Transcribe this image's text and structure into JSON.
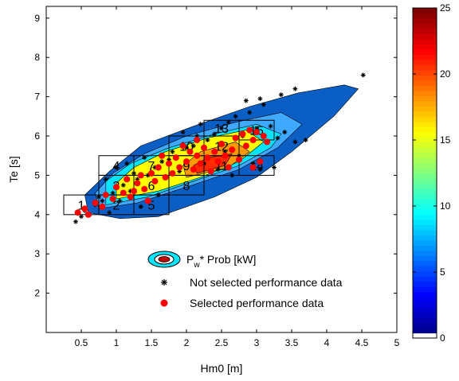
{
  "chart_data": {
    "type": "scatter",
    "xlabel": "Hm0 [m]",
    "ylabel": "Te [s]",
    "xlim": [
      0,
      5
    ],
    "ylim": [
      1,
      9.3
    ],
    "xticks": [
      "0.5",
      "1",
      "1.5",
      "2",
      "2.5",
      "3",
      "3.5",
      "4",
      "4.5",
      "5"
    ],
    "yticks": [
      "2",
      "3",
      "4",
      "5",
      "6",
      "7",
      "8",
      "9"
    ],
    "colorbar": {
      "min": 0,
      "max": 25,
      "ticks": [
        "0",
        "5",
        "10",
        "15",
        "20",
        "25"
      ],
      "colormap": "jet"
    },
    "contours": [
      {
        "level": "outer",
        "color": "#0b5fc4",
        "points": [
          [
            1.05,
            3.9
          ],
          [
            1.6,
            3.95
          ],
          [
            2.4,
            4.45
          ],
          [
            3.0,
            4.95
          ],
          [
            3.5,
            5.6
          ],
          [
            4.1,
            6.5
          ],
          [
            4.45,
            7.2
          ],
          [
            4.25,
            7.3
          ],
          [
            3.6,
            7.1
          ],
          [
            2.9,
            6.75
          ],
          [
            2.1,
            6.25
          ],
          [
            1.35,
            5.75
          ],
          [
            0.9,
            5.1
          ],
          [
            0.55,
            4.5
          ],
          [
            0.6,
            4.05
          ]
        ]
      },
      {
        "level": "mid",
        "color": "#3fa8ff",
        "points": [
          [
            0.75,
            4.15
          ],
          [
            1.3,
            4.3
          ],
          [
            2.0,
            4.7
          ],
          [
            2.75,
            5.15
          ],
          [
            3.3,
            5.7
          ],
          [
            3.65,
            6.3
          ],
          [
            3.35,
            6.6
          ],
          [
            2.7,
            6.35
          ],
          [
            2.0,
            6.0
          ],
          [
            1.4,
            5.55
          ],
          [
            0.95,
            5.05
          ],
          [
            0.7,
            4.55
          ]
        ]
      },
      {
        "level": "inner-cyan",
        "color": "#00e5ff",
        "points": [
          [
            0.85,
            4.25
          ],
          [
            1.45,
            4.45
          ],
          [
            2.1,
            4.85
          ],
          [
            2.75,
            5.25
          ],
          [
            3.2,
            5.7
          ],
          [
            3.35,
            6.05
          ],
          [
            3.0,
            6.3
          ],
          [
            2.4,
            6.05
          ],
          [
            1.75,
            5.7
          ],
          [
            1.2,
            5.3
          ],
          [
            0.85,
            4.85
          ]
        ]
      },
      {
        "level": "inner-yellow",
        "color": "#ffff00",
        "points": [
          [
            1.0,
            4.4
          ],
          [
            1.6,
            4.6
          ],
          [
            2.2,
            4.95
          ],
          [
            2.75,
            5.35
          ],
          [
            3.1,
            5.85
          ],
          [
            2.85,
            6.15
          ],
          [
            2.3,
            5.95
          ],
          [
            1.7,
            5.6
          ],
          [
            1.25,
            5.2
          ],
          [
            1.0,
            4.8
          ]
        ]
      },
      {
        "level": "inner-orange",
        "color": "#ff9900",
        "points": [
          [
            2.0,
            4.95
          ],
          [
            2.6,
            5.2
          ],
          [
            2.9,
            5.6
          ],
          [
            2.7,
            5.85
          ],
          [
            2.2,
            5.6
          ],
          [
            1.95,
            5.25
          ]
        ]
      },
      {
        "level": "peak",
        "color": "#ff2a00",
        "points": [
          [
            2.15,
            5.05
          ],
          [
            2.55,
            5.25
          ],
          [
            2.65,
            5.55
          ],
          [
            2.3,
            5.45
          ],
          [
            2.1,
            5.25
          ]
        ]
      }
    ],
    "bins": [
      {
        "label": "1",
        "x": [
          0.25,
          0.75
        ],
        "y": [
          4.0,
          4.5
        ]
      },
      {
        "label": "2",
        "x": [
          0.75,
          1.25
        ],
        "y": [
          4.0,
          4.5
        ]
      },
      {
        "label": "3",
        "x": [
          0.75,
          1.25
        ],
        "y": [
          4.5,
          5.0
        ]
      },
      {
        "label": "4",
        "x": [
          0.75,
          1.25
        ],
        "y": [
          5.0,
          5.5
        ]
      },
      {
        "label": "5",
        "x": [
          1.25,
          1.75
        ],
        "y": [
          4.0,
          4.5
        ]
      },
      {
        "label": "6",
        "x": [
          1.25,
          1.75
        ],
        "y": [
          4.5,
          5.0
        ]
      },
      {
        "label": "7",
        "x": [
          1.25,
          1.75
        ],
        "y": [
          5.0,
          5.5
        ]
      },
      {
        "label": "8",
        "x": [
          1.75,
          2.25
        ],
        "y": [
          4.5,
          5.0
        ]
      },
      {
        "label": "9",
        "x": [
          1.75,
          2.25
        ],
        "y": [
          5.0,
          5.5
        ]
      },
      {
        "label": "10",
        "x": [
          1.75,
          2.25
        ],
        "y": [
          5.5,
          6.0
        ]
      },
      {
        "label": "11",
        "x": [
          2.25,
          2.75
        ],
        "y": [
          5.0,
          5.5
        ]
      },
      {
        "label": "12",
        "x": [
          2.25,
          2.75
        ],
        "y": [
          5.5,
          6.0
        ]
      },
      {
        "label": "13",
        "x": [
          2.25,
          2.75
        ],
        "y": [
          6.0,
          6.4
        ]
      },
      {
        "label": "14",
        "x": [
          2.75,
          3.25
        ],
        "y": [
          5.0,
          5.5
        ]
      },
      {
        "label": "15",
        "x": [
          2.75,
          3.25
        ],
        "y": [
          5.9,
          6.4
        ]
      }
    ],
    "series": [
      {
        "name": "Not selected performance data",
        "marker": "star",
        "color": "#000000",
        "points": [
          [
            0.42,
            3.82
          ],
          [
            0.5,
            3.95
          ],
          [
            0.55,
            4.1
          ],
          [
            0.62,
            4.0
          ],
          [
            0.7,
            4.25
          ],
          [
            0.8,
            4.35
          ],
          [
            0.9,
            4.05
          ],
          [
            0.95,
            4.55
          ],
          [
            1.05,
            4.35
          ],
          [
            1.1,
            4.75
          ],
          [
            1.2,
            4.6
          ],
          [
            1.25,
            5.05
          ],
          [
            1.3,
            4.9
          ],
          [
            1.35,
            4.2
          ],
          [
            1.45,
            5.0
          ],
          [
            1.55,
            5.2
          ],
          [
            1.6,
            4.5
          ],
          [
            1.65,
            5.35
          ],
          [
            1.75,
            5.4
          ],
          [
            1.8,
            5.6
          ],
          [
            1.9,
            5.1
          ],
          [
            2.0,
            5.7
          ],
          [
            2.1,
            5.75
          ],
          [
            2.15,
            6.0
          ],
          [
            2.25,
            5.3
          ],
          [
            2.3,
            5.9
          ],
          [
            2.4,
            6.05
          ],
          [
            2.5,
            6.2
          ],
          [
            2.55,
            5.6
          ],
          [
            2.6,
            6.35
          ],
          [
            2.7,
            6.5
          ],
          [
            2.75,
            5.5
          ],
          [
            2.8,
            6.0
          ],
          [
            2.9,
            6.6
          ],
          [
            2.95,
            5.3
          ],
          [
            3.0,
            6.2
          ],
          [
            3.05,
            5.15
          ],
          [
            3.1,
            6.8
          ],
          [
            3.2,
            6.25
          ],
          [
            3.3,
            5.95
          ],
          [
            3.4,
            6.1
          ],
          [
            3.55,
            5.85
          ],
          [
            3.7,
            5.9
          ],
          [
            2.85,
            6.9
          ],
          [
            3.05,
            6.95
          ],
          [
            3.35,
            7.05
          ],
          [
            3.55,
            7.2
          ],
          [
            3.25,
            5.2
          ],
          [
            2.65,
            5.0
          ],
          [
            2.45,
            5.15
          ],
          [
            4.52,
            7.55
          ],
          [
            1.0,
            5.2
          ],
          [
            1.15,
            5.3
          ],
          [
            1.4,
            5.45
          ],
          [
            0.85,
            4.9
          ],
          [
            0.75,
            4.45
          ],
          [
            1.95,
            6.1
          ],
          [
            2.2,
            6.3
          ]
        ]
      },
      {
        "name": "Selected performance data",
        "marker": "dot",
        "color": "#ff0000",
        "points": [
          [
            0.45,
            4.05
          ],
          [
            0.55,
            4.15
          ],
          [
            0.6,
            4.0
          ],
          [
            0.7,
            4.3
          ],
          [
            0.8,
            4.2
          ],
          [
            0.85,
            4.5
          ],
          [
            0.95,
            4.4
          ],
          [
            1.0,
            4.7
          ],
          [
            1.1,
            4.55
          ],
          [
            1.15,
            4.9
          ],
          [
            1.2,
            4.45
          ],
          [
            1.3,
            4.8
          ],
          [
            1.35,
            5.0
          ],
          [
            1.4,
            4.65
          ],
          [
            1.5,
            5.05
          ],
          [
            1.55,
            4.85
          ],
          [
            1.6,
            5.2
          ],
          [
            1.7,
            4.95
          ],
          [
            1.75,
            5.3
          ],
          [
            1.8,
            5.05
          ],
          [
            1.85,
            5.45
          ],
          [
            1.9,
            5.2
          ],
          [
            2.0,
            5.35
          ],
          [
            2.05,
            5.6
          ],
          [
            2.1,
            5.15
          ],
          [
            2.15,
            5.5
          ],
          [
            2.2,
            5.3
          ],
          [
            2.25,
            5.7
          ],
          [
            2.3,
            5.45
          ],
          [
            2.35,
            5.1
          ],
          [
            2.4,
            5.6
          ],
          [
            2.45,
            5.35
          ],
          [
            2.5,
            5.8
          ],
          [
            2.55,
            5.5
          ],
          [
            2.6,
            5.2
          ],
          [
            2.65,
            5.65
          ],
          [
            2.7,
            5.95
          ],
          [
            2.75,
            5.4
          ],
          [
            2.8,
            6.05
          ],
          [
            2.85,
            5.75
          ],
          [
            2.9,
            6.15
          ],
          [
            2.95,
            5.9
          ],
          [
            3.0,
            6.1
          ],
          [
            3.1,
            6.0
          ],
          [
            3.15,
            5.85
          ],
          [
            2.95,
            5.2
          ],
          [
            3.05,
            5.35
          ],
          [
            1.45,
            4.35
          ],
          [
            1.25,
            4.6
          ],
          [
            1.65,
            5.5
          ],
          [
            1.95,
            5.75
          ],
          [
            2.15,
            5.9
          ]
        ]
      }
    ],
    "legend": {
      "position": "lower-center",
      "entries": [
        {
          "key": "contour",
          "label_main": "P",
          "label_sub": "w",
          "label_rest": "* Prob [kW]"
        },
        {
          "key": "not-selected",
          "label": "Not selected performance data"
        },
        {
          "key": "selected",
          "label": "Selected performance data"
        }
      ]
    }
  }
}
